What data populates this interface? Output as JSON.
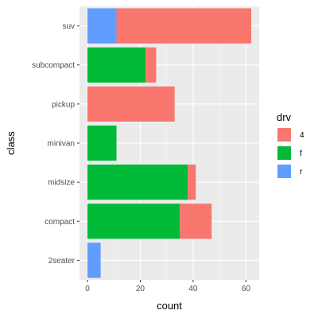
{
  "chart_data": {
    "type": "bar",
    "orientation": "horizontal",
    "stacked": true,
    "xlabel": "count",
    "ylabel": "class",
    "categories": [
      "2seater",
      "compact",
      "midsize",
      "minivan",
      "pickup",
      "subcompact",
      "suv"
    ],
    "xlim": [
      -3,
      65
    ],
    "xticks": [
      0,
      20,
      40,
      60
    ],
    "grid": true,
    "legend": {
      "title": "drv",
      "position": "right"
    },
    "series": [
      {
        "name": "4",
        "color": "#F8766D",
        "values": [
          0,
          12,
          3,
          0,
          33,
          4,
          51
        ]
      },
      {
        "name": "f",
        "color": "#00BA38",
        "values": [
          0,
          35,
          38,
          11,
          0,
          22,
          0
        ]
      },
      {
        "name": "r",
        "color": "#619CFF",
        "values": [
          5,
          0,
          0,
          0,
          0,
          0,
          11
        ]
      }
    ],
    "stack_order_from_axis": [
      "r",
      "f",
      "4"
    ]
  }
}
